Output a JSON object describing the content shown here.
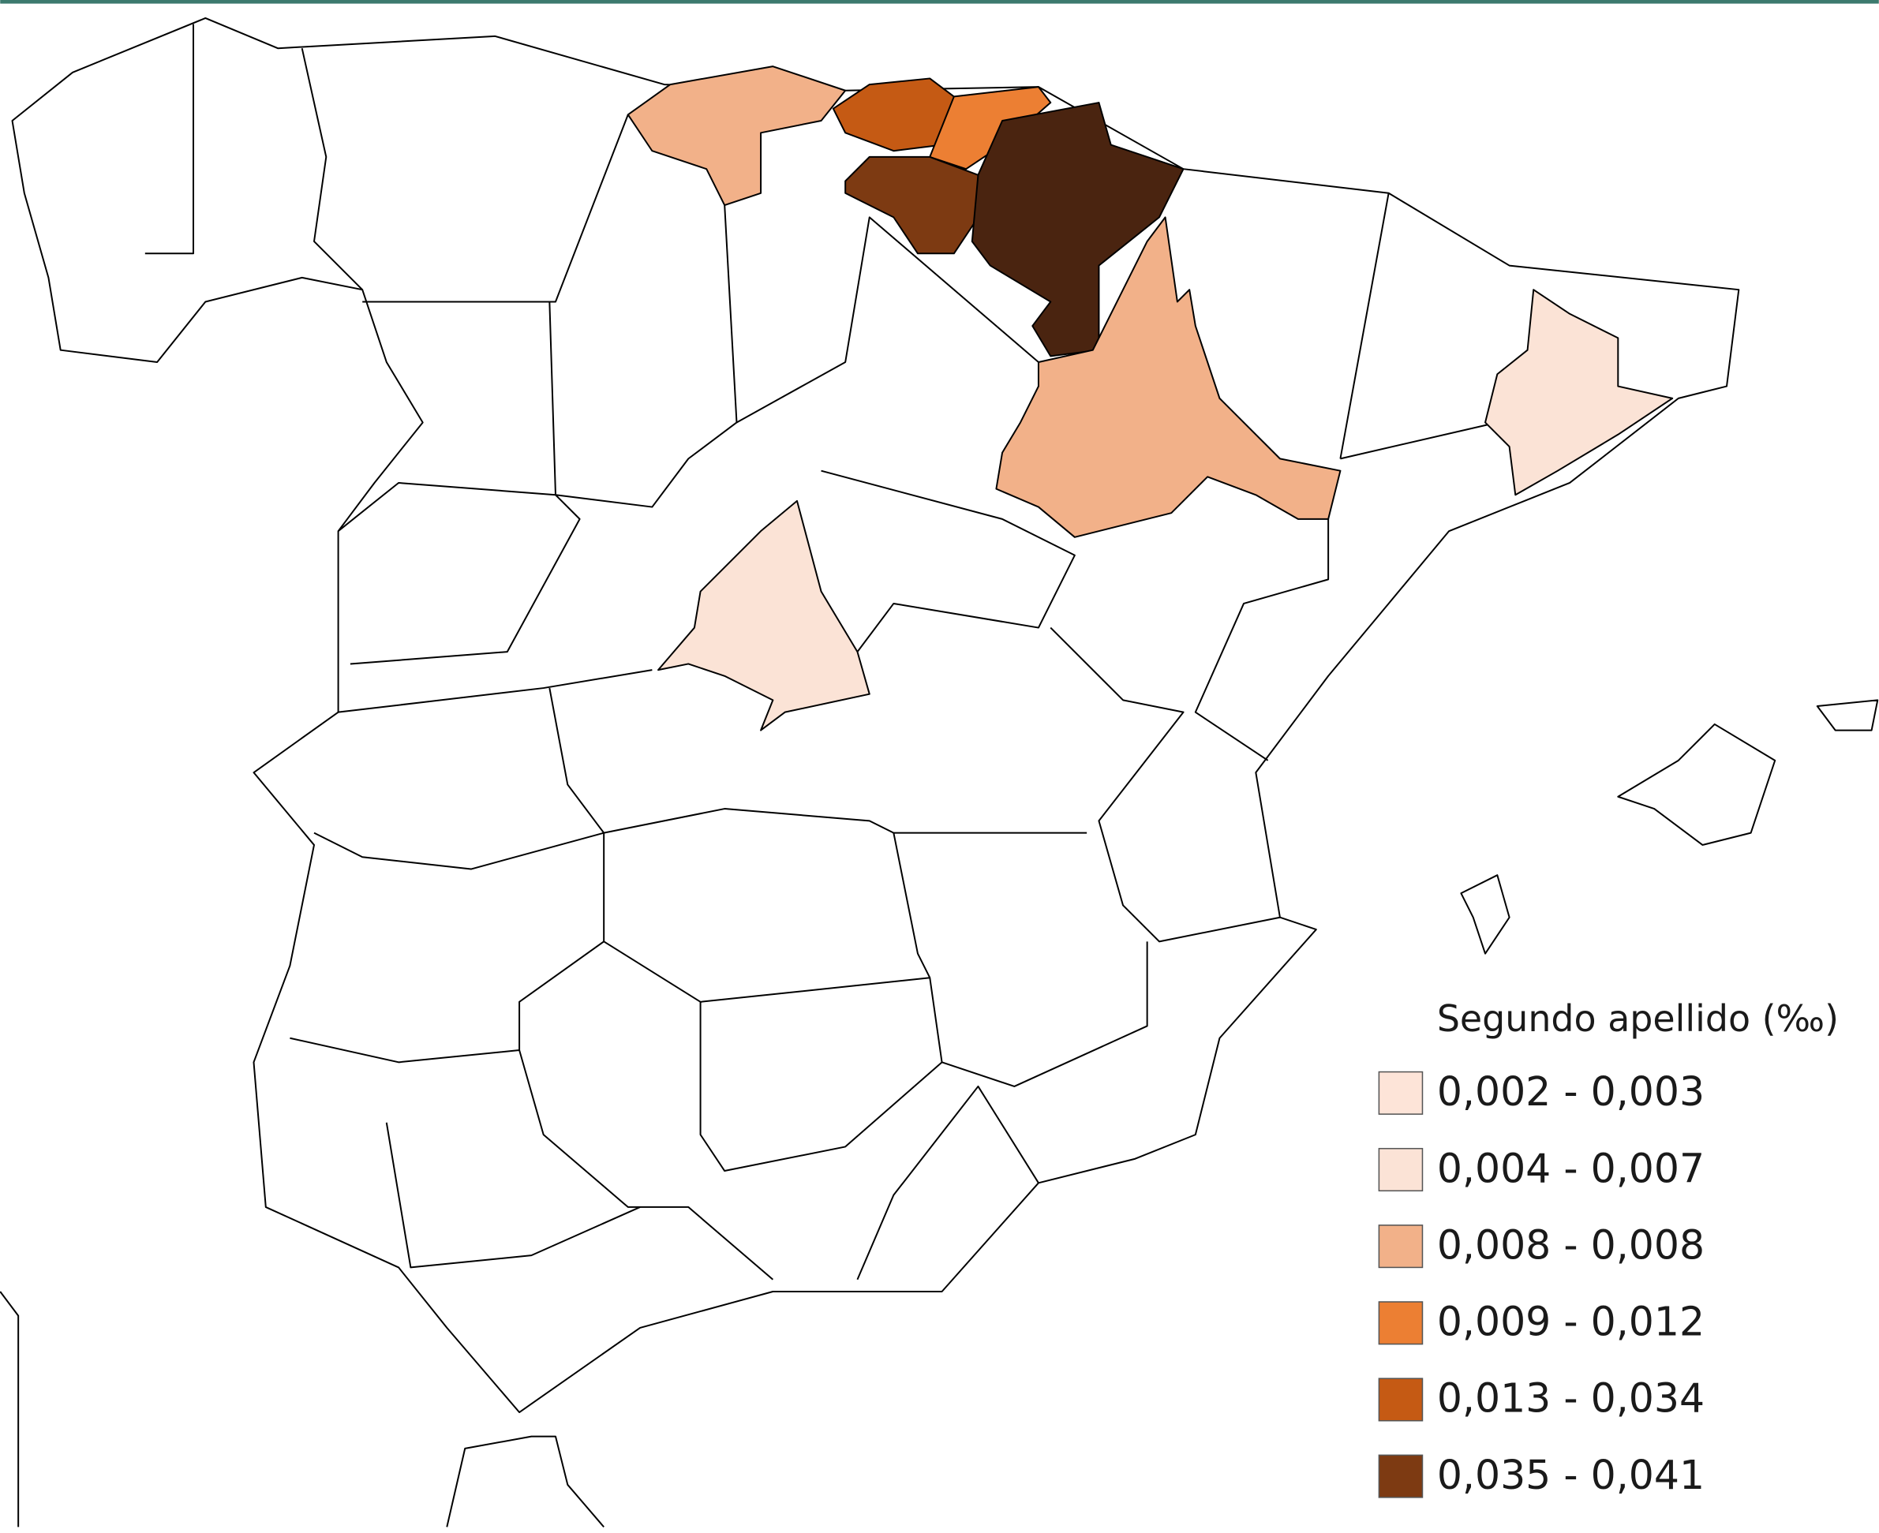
{
  "legend": {
    "title": "Segundo apellido (‰)",
    "items": [
      {
        "label": "0,002 - 0,003",
        "color": "#fde4d8"
      },
      {
        "label": "0,004 - 0,007",
        "color": "#fbe3d6"
      },
      {
        "label": "0,008 - 0,008",
        "color": "#f2b189"
      },
      {
        "label": "0,009 - 0,012",
        "color": "#ec7f33"
      },
      {
        "label": "0,013 - 0,034",
        "color": "#c55a14"
      },
      {
        "label": "0,035 - 0,041",
        "color": "#7d3a12"
      }
    ]
  }
}
